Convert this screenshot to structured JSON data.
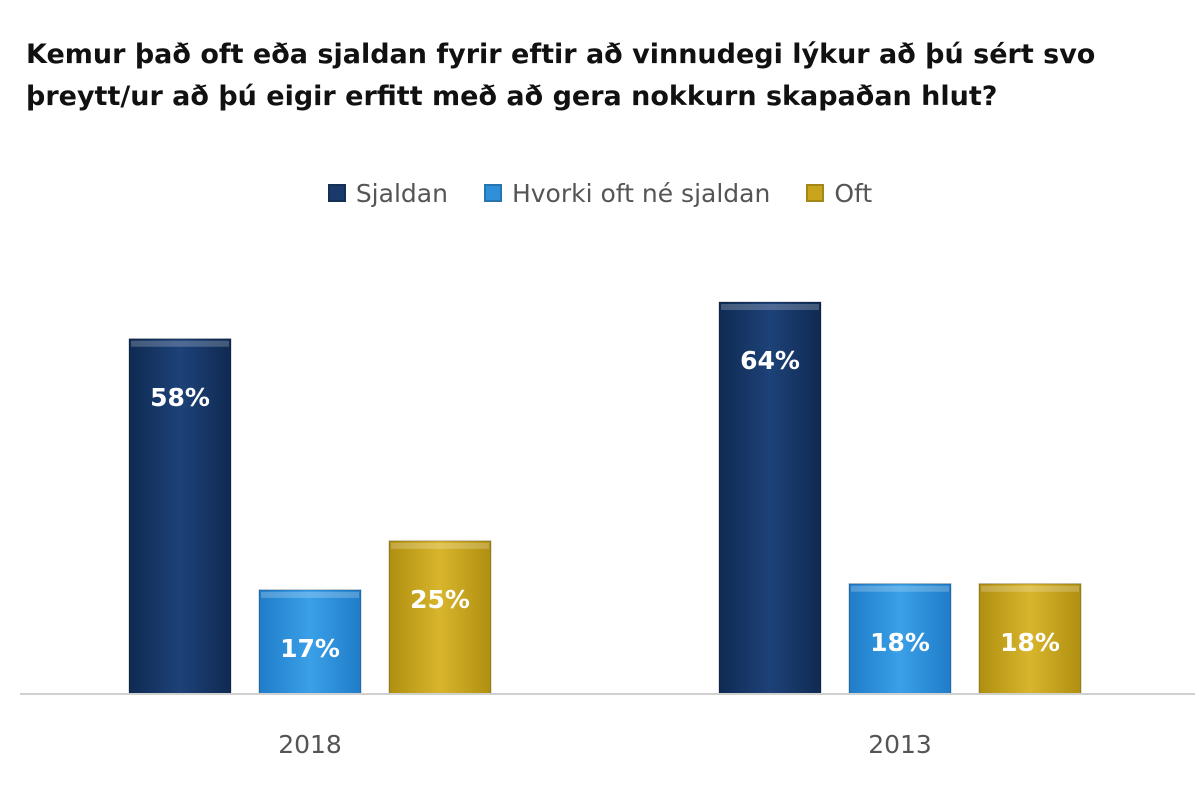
{
  "chart_data": {
    "type": "bar",
    "title": "Kemur það oft eða sjaldan fyrir eftir að vinnudegi lýkur að þú sért svo þreytt/ur að þú eigir erfitt með að gera nokkurn skapaðan hlut?",
    "categories": [
      "2018",
      "2013"
    ],
    "series": [
      {
        "name": "Sjaldan",
        "values": [
          58,
          64
        ],
        "labels": [
          "58%",
          "64%"
        ],
        "color": "#1a3a6b"
      },
      {
        "name": "Hvorki oft né sjaldan",
        "values": [
          17,
          18
        ],
        "labels": [
          "17%",
          "18%"
        ],
        "color": "#2f8fd8"
      },
      {
        "name": "Oft",
        "values": [
          25,
          18
        ],
        "labels": [
          "25%",
          "18%"
        ],
        "color": "#c9a51e"
      }
    ],
    "ylim": [
      0,
      64
    ],
    "grid": false,
    "legend_position": "top"
  }
}
